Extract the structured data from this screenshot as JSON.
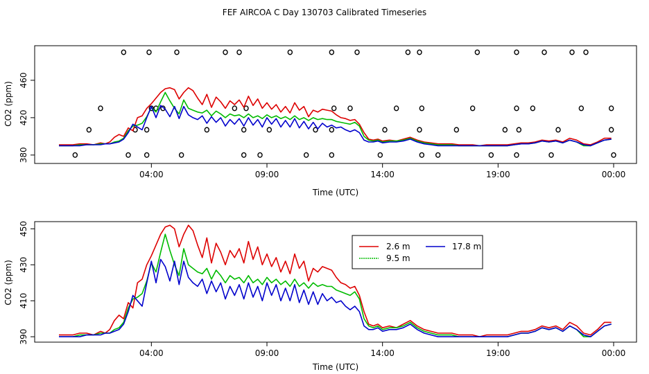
{
  "title": "FEF AIRCOA C  Day 130703  Calibrated Timeseries",
  "colors": {
    "s26": "#dd0000",
    "s95": "#00bb00",
    "s178": "#0000cc",
    "axis": "#000000"
  },
  "chart_data": [
    {
      "type": "line",
      "name": "top-panel",
      "xlabel": "Time (UTC)",
      "ylabel": "CO2 (ppm)",
      "xlim_hours": [
        0,
        25
      ],
      "xticks": [
        {
          "h": 4,
          "label": "04:00"
        },
        {
          "h": 9,
          "label": "09:00"
        },
        {
          "h": 14,
          "label": "14:00"
        },
        {
          "h": 19,
          "label": "19:00"
        },
        {
          "h": 24,
          "label": "00:00"
        }
      ],
      "ylim": [
        371,
        497
      ],
      "yticks": [
        380,
        420,
        460
      ],
      "series": [
        {
          "name": "2.6 m",
          "color_key": "s26",
          "x": [
            0.0,
            0.3,
            0.6,
            0.9,
            1.2,
            1.5,
            1.8,
            2.0,
            2.2,
            2.4,
            2.6,
            2.8,
            3.0,
            3.2,
            3.4,
            3.6,
            3.8,
            4.0,
            4.2,
            4.4,
            4.6,
            4.8,
            5.0,
            5.2,
            5.4,
            5.6,
            5.8,
            6.0,
            6.2,
            6.4,
            6.6,
            6.8,
            7.0,
            7.2,
            7.4,
            7.6,
            7.8,
            8.0,
            8.2,
            8.4,
            8.6,
            8.8,
            9.0,
            9.2,
            9.4,
            9.6,
            9.8,
            10.0,
            10.2,
            10.4,
            10.6,
            10.8,
            11.0,
            11.2,
            11.4,
            11.6,
            11.8,
            12.0,
            12.2,
            12.4,
            12.6,
            12.8,
            13.0,
            13.2,
            13.4,
            13.6,
            13.8,
            14.0,
            14.3,
            14.6,
            14.9,
            15.2,
            15.5,
            15.8,
            16.1,
            16.4,
            16.7,
            17.0,
            17.3,
            17.6,
            17.9,
            18.2,
            18.5,
            18.8,
            19.1,
            19.4,
            19.7,
            20.0,
            20.3,
            20.6,
            20.9,
            21.2,
            21.5,
            21.8,
            22.1,
            22.4,
            22.7,
            23.0,
            23.3,
            23.6,
            23.9
          ],
          "values": [
            391,
            391,
            391,
            392,
            392,
            391,
            393,
            392,
            394,
            399,
            402,
            400,
            409,
            406,
            420,
            422,
            430,
            435,
            441,
            447,
            451,
            452,
            450,
            440,
            447,
            452,
            449,
            441,
            434,
            445,
            431,
            442,
            437,
            430,
            438,
            434,
            439,
            431,
            443,
            433,
            440,
            430,
            436,
            429,
            434,
            426,
            432,
            425,
            436,
            428,
            432,
            421,
            428,
            426,
            429,
            428,
            427,
            423,
            420,
            419,
            417,
            418,
            413,
            404,
            397,
            396,
            397,
            395,
            396,
            395,
            397,
            399,
            396,
            394,
            393,
            392,
            392,
            392,
            391,
            391,
            391,
            390,
            391,
            391,
            391,
            391,
            392,
            393,
            393,
            394,
            396,
            395,
            396,
            394,
            398,
            396,
            392,
            391,
            394,
            398,
            398
          ]
        },
        {
          "name": "9.5 m",
          "color_key": "s95",
          "x": [
            0.0,
            0.3,
            0.6,
            0.9,
            1.2,
            1.5,
            1.8,
            2.0,
            2.2,
            2.4,
            2.6,
            2.8,
            3.0,
            3.2,
            3.4,
            3.6,
            3.8,
            4.0,
            4.2,
            4.4,
            4.6,
            4.8,
            5.0,
            5.2,
            5.4,
            5.6,
            5.8,
            6.0,
            6.2,
            6.4,
            6.6,
            6.8,
            7.0,
            7.2,
            7.4,
            7.6,
            7.8,
            8.0,
            8.2,
            8.4,
            8.6,
            8.8,
            9.0,
            9.2,
            9.4,
            9.6,
            9.8,
            10.0,
            10.2,
            10.4,
            10.6,
            10.8,
            11.0,
            11.2,
            11.4,
            11.6,
            11.8,
            12.0,
            12.2,
            12.4,
            12.6,
            12.8,
            13.0,
            13.2,
            13.4,
            13.6,
            13.8,
            14.0,
            14.3,
            14.6,
            14.9,
            15.2,
            15.5,
            15.8,
            16.1,
            16.4,
            16.7,
            17.0,
            17.3,
            17.6,
            17.9,
            18.2,
            18.5,
            18.8,
            19.1,
            19.4,
            19.7,
            20.0,
            20.3,
            20.6,
            20.9,
            21.2,
            21.5,
            21.8,
            22.1,
            22.4,
            22.7,
            23.0,
            23.3,
            23.6,
            23.9
          ],
          "values": [
            390,
            390,
            390,
            391,
            391,
            391,
            392,
            392,
            392,
            394,
            395,
            398,
            406,
            411,
            412,
            414,
            421,
            431,
            426,
            437,
            447,
            438,
            430,
            424,
            439,
            430,
            428,
            426,
            425,
            428,
            422,
            427,
            424,
            420,
            424,
            422,
            423,
            420,
            424,
            420,
            422,
            419,
            423,
            420,
            422,
            419,
            421,
            418,
            422,
            418,
            420,
            417,
            420,
            418,
            419,
            418,
            418,
            416,
            415,
            414,
            413,
            415,
            411,
            400,
            396,
            395,
            396,
            394,
            395,
            395,
            396,
            398,
            395,
            393,
            392,
            391,
            391,
            391,
            390,
            390,
            390,
            390,
            390,
            390,
            390,
            390,
            391,
            392,
            392,
            393,
            395,
            394,
            395,
            393,
            396,
            394,
            390,
            390,
            393,
            396,
            397
          ]
        },
        {
          "name": "17.8 m",
          "color_key": "s178",
          "x": [
            0.0,
            0.3,
            0.6,
            0.9,
            1.2,
            1.5,
            1.8,
            2.0,
            2.2,
            2.4,
            2.6,
            2.8,
            3.0,
            3.2,
            3.4,
            3.6,
            3.8,
            4.0,
            4.2,
            4.4,
            4.6,
            4.8,
            5.0,
            5.2,
            5.4,
            5.6,
            5.8,
            6.0,
            6.2,
            6.4,
            6.6,
            6.8,
            7.0,
            7.2,
            7.4,
            7.6,
            7.8,
            8.0,
            8.2,
            8.4,
            8.6,
            8.8,
            9.0,
            9.2,
            9.4,
            9.6,
            9.8,
            10.0,
            10.2,
            10.4,
            10.6,
            10.8,
            11.0,
            11.2,
            11.4,
            11.6,
            11.8,
            12.0,
            12.2,
            12.4,
            12.6,
            12.8,
            13.0,
            13.2,
            13.4,
            13.6,
            13.8,
            14.0,
            14.3,
            14.6,
            14.9,
            15.2,
            15.5,
            15.8,
            16.1,
            16.4,
            16.7,
            17.0,
            17.3,
            17.6,
            17.9,
            18.2,
            18.5,
            18.8,
            19.1,
            19.4,
            19.7,
            20.0,
            20.3,
            20.6,
            20.9,
            21.2,
            21.5,
            21.8,
            22.1,
            22.4,
            22.7,
            23.0,
            23.3,
            23.6,
            23.9
          ],
          "values": [
            390,
            390,
            390,
            390,
            391,
            391,
            391,
            392,
            392,
            393,
            394,
            397,
            404,
            413,
            410,
            407,
            420,
            432,
            420,
            433,
            429,
            421,
            432,
            419,
            432,
            423,
            420,
            418,
            422,
            414,
            421,
            415,
            420,
            411,
            418,
            413,
            419,
            411,
            420,
            412,
            418,
            410,
            420,
            413,
            419,
            410,
            417,
            410,
            419,
            409,
            416,
            408,
            415,
            408,
            414,
            410,
            412,
            409,
            410,
            407,
            405,
            407,
            404,
            396,
            394,
            394,
            395,
            393,
            394,
            394,
            395,
            397,
            394,
            392,
            391,
            390,
            390,
            390,
            390,
            390,
            390,
            390,
            390,
            390,
            390,
            390,
            391,
            392,
            392,
            393,
            395,
            394,
            395,
            393,
            396,
            394,
            391,
            390,
            393,
            396,
            397
          ]
        }
      ],
      "points_hours_high": [
        2.8,
        3.9,
        5.1,
        7.2,
        7.8,
        10.0,
        11.8,
        12.9,
        15.1,
        15.6,
        18.1,
        19.8,
        21.0,
        22.2,
        22.8
      ],
      "points_hours_430": [
        1.8,
        4.0,
        4.2,
        4.5,
        7.6,
        8.1,
        11.9,
        12.6,
        14.6,
        15.7,
        17.9,
        19.8,
        20.5,
        22.6,
        23.9
      ],
      "points_hours_407": [
        1.3,
        3.3,
        3.8,
        6.4,
        8.0,
        9.1,
        11.1,
        11.8,
        14.1,
        15.6,
        17.2,
        19.3,
        19.9,
        21.6,
        23.9
      ],
      "points_hours_380": [
        0.7,
        3.0,
        3.8,
        5.3,
        8.0,
        8.7,
        10.7,
        11.8,
        13.9,
        15.7,
        16.4,
        18.7,
        19.8,
        21.3,
        24.0
      ],
      "points_values": {
        "high": 490,
        "mid": 430,
        "low": 407,
        "bottom": 380
      }
    },
    {
      "type": "line",
      "name": "bottom-panel",
      "xlabel": "Time (UTC)",
      "ylabel": "CO2 (ppm)",
      "xlim_hours": [
        0,
        25
      ],
      "xticks": [
        {
          "h": 4,
          "label": "04:00"
        },
        {
          "h": 9,
          "label": "09:00"
        },
        {
          "h": 14,
          "label": "14:00"
        },
        {
          "h": 19,
          "label": "19:00"
        },
        {
          "h": 24,
          "label": "00:00"
        }
      ],
      "ylim": [
        387,
        454
      ],
      "yticks": [
        390,
        410,
        430,
        450
      ],
      "legend": {
        "placement": "top-right",
        "entries": [
          "2.6 m",
          "9.5 m",
          "17.8 m"
        ]
      },
      "series_ref": "top-panel"
    }
  ]
}
